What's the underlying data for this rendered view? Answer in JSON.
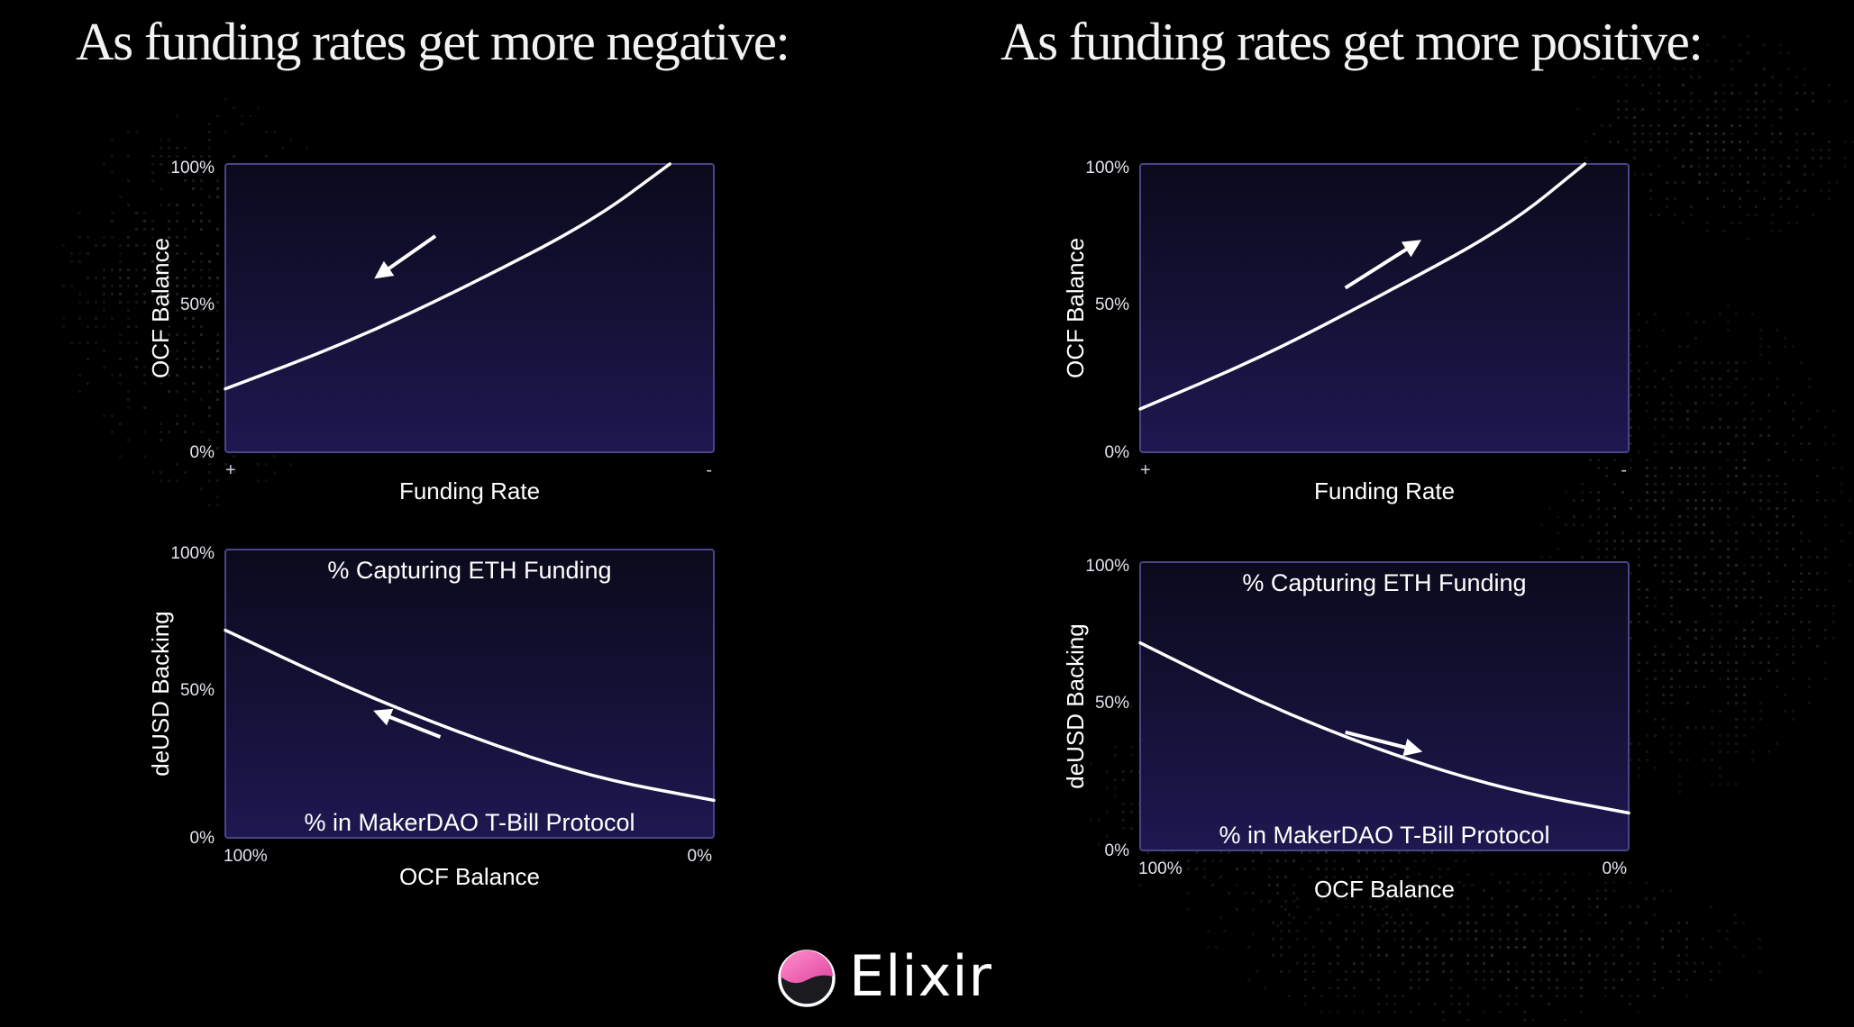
{
  "headings": {
    "left": "As funding rates get more negative:",
    "right": "As funding rates get more positive:"
  },
  "panels": [
    {
      "id": "neg-top",
      "y_label": "OCF Balance",
      "x_label": "Funding Rate",
      "y_ticks": [
        "100%",
        "50%",
        "0%"
      ],
      "x_left": "+",
      "x_right": "-",
      "top_label": "",
      "bottom_label": "",
      "arrow": "down-left",
      "curve": {
        "x": [
          0,
          0.25,
          0.5,
          0.75,
          0.91
        ],
        "y": [
          22,
          38,
          58,
          80,
          100
        ]
      }
    },
    {
      "id": "neg-bottom",
      "y_label": "deUSD Backing",
      "x_label": "OCF Balance",
      "y_ticks": [
        "100%",
        "50%",
        "0%"
      ],
      "x_left": "100%",
      "x_right": "0%",
      "top_label": "% Capturing ETH Funding",
      "bottom_label": "% in MakerDAO T-Bill Protocol",
      "arrow": "up-left",
      "curve": {
        "x": [
          0,
          0.25,
          0.5,
          0.75,
          1
        ],
        "y": [
          72,
          52,
          35,
          21,
          13
        ]
      }
    },
    {
      "id": "pos-top",
      "y_label": "OCF Balance",
      "x_label": "Funding Rate",
      "y_ticks": [
        "100%",
        "50%",
        "0%"
      ],
      "x_left": "+",
      "x_right": "-",
      "top_label": "",
      "bottom_label": "",
      "arrow": "up-right",
      "curve": {
        "x": [
          0,
          0.25,
          0.5,
          0.75,
          0.91
        ],
        "y": [
          15,
          33,
          55,
          78,
          100
        ]
      }
    },
    {
      "id": "pos-bottom",
      "y_label": "deUSD Backing",
      "x_label": "OCF Balance",
      "y_ticks": [
        "100%",
        "50%",
        "0%"
      ],
      "x_left": "100%",
      "x_right": "0%",
      "top_label": "% Capturing ETH Funding",
      "bottom_label": "% in MakerDAO T-Bill Protocol",
      "arrow": "down-right",
      "curve": {
        "x": [
          0,
          0.25,
          0.5,
          0.75,
          1
        ],
        "y": [
          72,
          51,
          34,
          21,
          13
        ]
      }
    }
  ],
  "logo": {
    "text": "Elixir",
    "icon": "elixir-drop-icon"
  },
  "colors": {
    "background": "#000000",
    "panel_top": "#0b0a1c",
    "panel_bottom": "#1d1850",
    "panel_border": "#4a4488",
    "curve": "#ffffff",
    "logo_pink": "#f06ab5"
  }
}
